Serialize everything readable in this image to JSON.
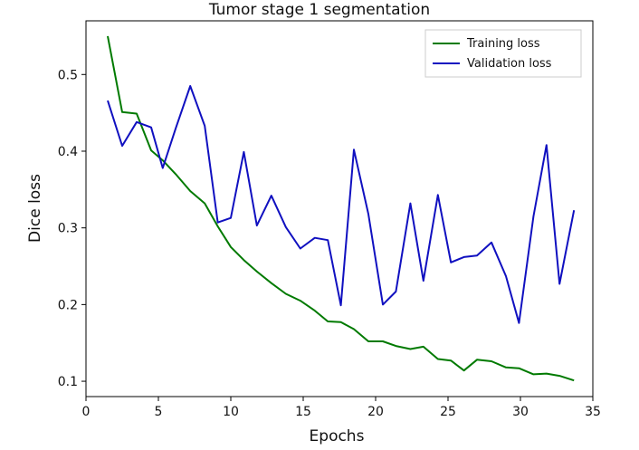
{
  "chart_data": {
    "type": "line",
    "title": "Tumor stage 1 segmentation",
    "xlabel": "Epochs",
    "ylabel": "Dice loss",
    "xlim": [
      0,
      35
    ],
    "ylim": [
      0.08,
      0.57
    ],
    "xticks": [
      "0",
      "5",
      "10",
      "15",
      "20",
      "25",
      "30",
      "35"
    ],
    "yticks": [
      "0.1",
      "0.2",
      "0.3",
      "0.4",
      "0.5"
    ],
    "legend_position": "top-right",
    "grid": false,
    "x": [
      1.5,
      2.5,
      3.5,
      4.5,
      5.3,
      6.2,
      7.2,
      8.2,
      9.1,
      10.0,
      10.9,
      11.8,
      12.8,
      13.8,
      14.8,
      15.8,
      16.7,
      17.6,
      18.5,
      19.5,
      20.5,
      21.4,
      22.4,
      23.3,
      24.3,
      25.2,
      26.1,
      27.0,
      28.0,
      29.0,
      29.9,
      30.9,
      31.8,
      32.7,
      33.7
    ],
    "series": [
      {
        "name": "Training loss",
        "color": "#007a00",
        "values": [
          0.55,
          0.451,
          0.449,
          0.401,
          0.388,
          0.37,
          0.348,
          0.332,
          0.302,
          0.275,
          0.258,
          0.243,
          0.228,
          0.214,
          0.205,
          0.192,
          0.178,
          0.177,
          0.168,
          0.152,
          0.152,
          0.146,
          0.142,
          0.145,
          0.129,
          0.127,
          0.114,
          0.128,
          0.126,
          0.118,
          0.117,
          0.109,
          0.11,
          0.107,
          0.101
        ]
      },
      {
        "name": "Validation loss",
        "color": "#1010c0",
        "values": [
          0.466,
          0.407,
          0.438,
          0.431,
          0.378,
          0.43,
          0.485,
          0.433,
          0.307,
          0.313,
          0.399,
          0.303,
          0.342,
          0.301,
          0.273,
          0.287,
          0.284,
          0.199,
          0.402,
          0.318,
          0.2,
          0.217,
          0.332,
          0.231,
          0.343,
          0.255,
          0.262,
          0.264,
          0.281,
          0.237,
          0.176,
          0.315,
          0.408,
          0.227,
          0.323
        ]
      }
    ]
  }
}
